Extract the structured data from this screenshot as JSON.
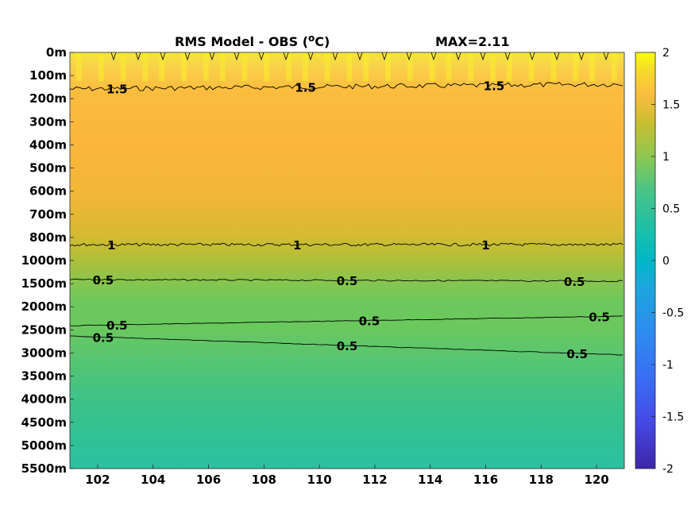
{
  "title": "RMS Model - OBS (",
  "title_unit": "o",
  "title_unit_suffix": "C)",
  "max_label": "MAX=2.11",
  "colors": {
    "colormap": [
      "#3e26a8",
      "#2f6ef2",
      "#1fa7d6",
      "#00bdb3",
      "#2bc08d",
      "#77c95c",
      "#b9be2f",
      "#f2b63a",
      "#f9d528",
      "#f9fb0e"
    ]
  },
  "chart_data": {
    "type": "heatmap",
    "title": "RMS Model - OBS (oC)",
    "annotation": "MAX=2.11",
    "x_ticks": [
      "102",
      "104",
      "106",
      "108",
      "110",
      "112",
      "114",
      "116",
      "118",
      "120"
    ],
    "x_tick_values": [
      102,
      104,
      106,
      108,
      110,
      112,
      114,
      116,
      118,
      120
    ],
    "xlim": [
      101,
      121
    ],
    "y_ticks": [
      "0m",
      "100m",
      "200m",
      "300m",
      "400m",
      "500m",
      "600m",
      "700m",
      "800m",
      "1000m",
      "1500m",
      "2000m",
      "2500m",
      "3000m",
      "3500m",
      "4000m",
      "4500m",
      "5000m",
      "5500m"
    ],
    "y_axis": "depth (non-uniform, reversed; 0m at top, 5500m at bottom)",
    "colorbar": {
      "range": [
        -2,
        2
      ],
      "ticks": [
        "2",
        "1.5",
        "1",
        "0.5",
        "0",
        "-0.5",
        "-1",
        "-1.5",
        "-2"
      ],
      "tick_values": [
        2,
        1.5,
        1,
        0.5,
        0,
        -0.5,
        -1,
        -1.5,
        -2
      ]
    },
    "profile": [
      {
        "depth": "0m",
        "value": 1.75
      },
      {
        "depth": "100m",
        "value": 1.6
      },
      {
        "depth": "200m",
        "value": 1.45
      },
      {
        "depth": "300m",
        "value": 1.4
      },
      {
        "depth": "400m",
        "value": 1.36
      },
      {
        "depth": "500m",
        "value": 1.3
      },
      {
        "depth": "600m",
        "value": 1.22
      },
      {
        "depth": "700m",
        "value": 1.12
      },
      {
        "depth": "800m",
        "value": 1.0
      },
      {
        "depth": "1000m",
        "value": 0.8
      },
      {
        "depth": "1500m",
        "value": 0.5
      },
      {
        "depth": "2000m",
        "value": 0.62
      },
      {
        "depth": "2500m",
        "value": 0.55
      },
      {
        "depth": "3000m",
        "value": 0.5
      },
      {
        "depth": "3500m",
        "value": 0.44
      },
      {
        "depth": "4000m",
        "value": 0.38
      },
      {
        "depth": "4500m",
        "value": 0.34
      },
      {
        "depth": "5000m",
        "value": 0.3
      },
      {
        "depth": "5500m",
        "value": 0.28
      }
    ],
    "contours": [
      {
        "level": "1.5",
        "label_x": [
          102.7,
          109.5,
          116.3
        ],
        "depth": "~200m"
      },
      {
        "level": "1",
        "label_x": [
          102.5,
          109.2,
          116.0
        ],
        "depth": "~800m"
      },
      {
        "level": "0.5",
        "label_x": [
          102.2,
          111.0,
          119.2
        ],
        "depth": "~1500m"
      },
      {
        "level": "0.5",
        "label_x": [
          102.7,
          111.8,
          120.1
        ],
        "depth": "~2500m"
      },
      {
        "level": "0.5",
        "label_x": [
          102.2,
          111.0,
          119.3
        ],
        "depth": "~2800m"
      }
    ]
  }
}
